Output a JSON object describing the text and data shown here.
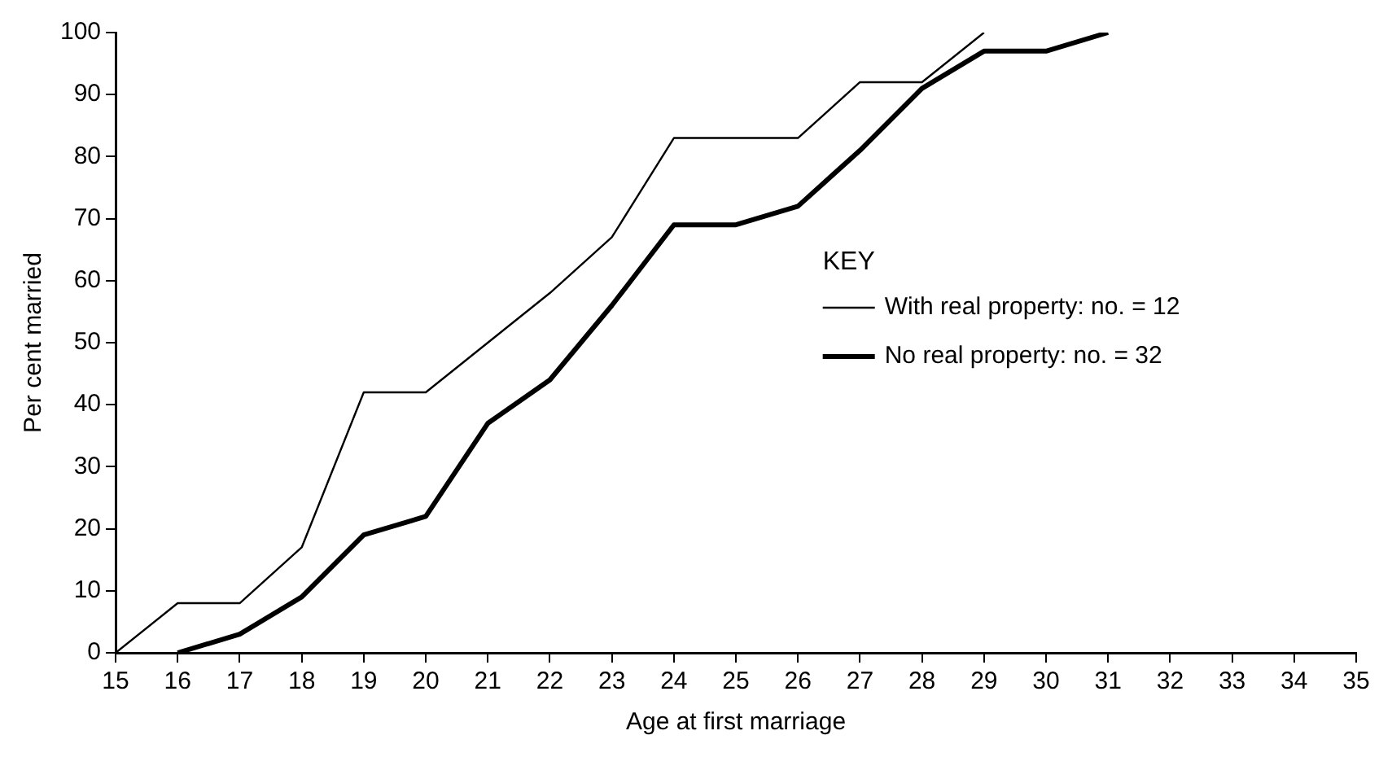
{
  "chart_data": {
    "type": "line",
    "xlabel": "Age at first marriage",
    "ylabel": "Per cent married",
    "legend_title": "KEY",
    "legend": "right",
    "grid": false,
    "marker": "none",
    "line_style": "solid",
    "xlim": [
      15,
      35
    ],
    "xticks": [
      15,
      16,
      17,
      18,
      19,
      20,
      21,
      22,
      23,
      24,
      25,
      26,
      27,
      28,
      29,
      30,
      31,
      32,
      33,
      34,
      35
    ],
    "ylim": [
      0,
      100
    ],
    "yticks": [
      0,
      10,
      20,
      30,
      40,
      50,
      60,
      70,
      80,
      90,
      100
    ],
    "series": [
      {
        "name": "With real property: no. = 12",
        "color": "#000000",
        "x": [
          15,
          16,
          17,
          18,
          19,
          20,
          21,
          22,
          23,
          24,
          25,
          26,
          27,
          28,
          29
        ],
        "values": [
          0,
          8,
          8,
          17,
          42,
          42,
          50,
          58,
          67,
          83,
          83,
          83,
          92,
          92,
          100
        ]
      },
      {
        "name": "No real property: no. = 32",
        "color": "#000000",
        "x": [
          16,
          17,
          18,
          19,
          20,
          21,
          22,
          23,
          24,
          25,
          26,
          27,
          28,
          29,
          30,
          31
        ],
        "values": [
          0,
          3,
          9,
          19,
          22,
          37,
          44,
          56,
          69,
          69,
          72,
          81,
          91,
          97,
          97,
          100
        ]
      }
    ]
  }
}
